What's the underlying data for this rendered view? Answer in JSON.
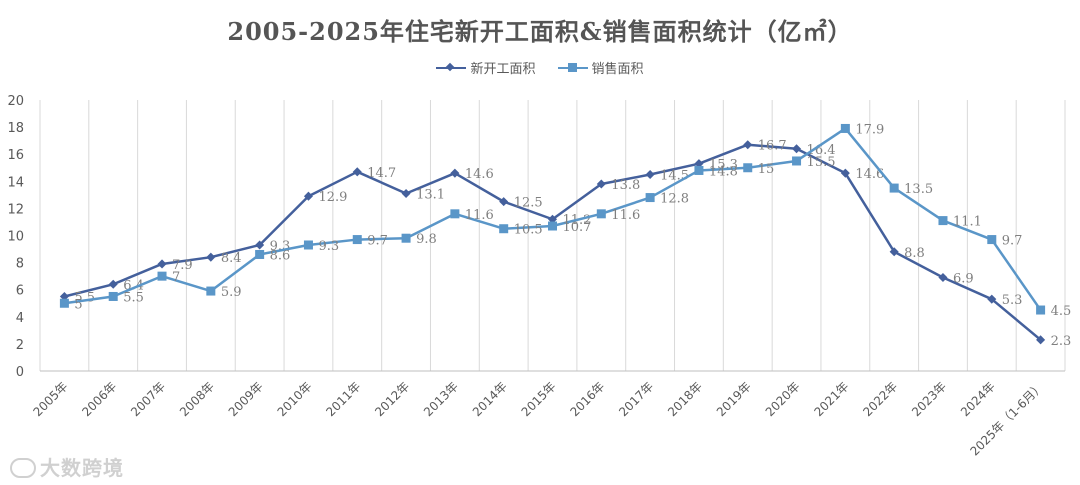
{
  "chart_data": {
    "type": "line",
    "title": "2005-2025年住宅新开工面积&销售面积统计（亿㎡）",
    "categories": [
      "2005年",
      "2006年",
      "2007年",
      "2008年",
      "2009年",
      "2010年",
      "2011年",
      "2012年",
      "2013年",
      "2014年",
      "2015年",
      "2016年",
      "2017年",
      "2018年",
      "2019年",
      "2020年",
      "2021年",
      "2022年",
      "2023年",
      "2024年",
      "2025年（1-6月）"
    ],
    "series": [
      {
        "name": "新开工面积",
        "color": "#44609c",
        "marker": "diamond",
        "values": [
          5.5,
          6.4,
          7.9,
          8.4,
          9.3,
          12.9,
          14.7,
          13.1,
          14.6,
          12.5,
          11.2,
          13.8,
          14.5,
          15.3,
          16.7,
          16.4,
          14.6,
          8.8,
          6.9,
          5.3,
          2.3
        ],
        "labels": [
          "5.5",
          "6.4",
          "7.9",
          "8.4",
          "9.3",
          "12.9",
          "14.7",
          "13.1",
          "14.6",
          "12.5",
          "11.2",
          "13.8",
          "14.5",
          "15.3",
          "16.7",
          "16.4",
          "14.6",
          "8.8",
          "6.9",
          "5.3",
          "2.3"
        ]
      },
      {
        "name": "销售面积",
        "color": "#5a96c8",
        "marker": "square",
        "values": [
          5.0,
          5.5,
          7.0,
          5.9,
          8.6,
          9.3,
          9.7,
          9.8,
          11.6,
          10.5,
          10.7,
          11.6,
          12.8,
          14.8,
          15.0,
          15.5,
          17.9,
          13.5,
          11.1,
          9.7,
          4.5
        ],
        "labels": [
          "5",
          "5.5",
          "7",
          "5.9",
          "8.6",
          "9.3",
          "9.7",
          "9.8",
          "11.6",
          "10.5",
          "10.7",
          "11.6",
          "12.8",
          "14.8",
          "15",
          "15.5",
          "17.9",
          "13.5",
          "11.1",
          "9.7",
          "4.5"
        ]
      }
    ],
    "ylim": [
      0,
      20
    ],
    "yticks": [
      "0",
      "2",
      "4",
      "6",
      "8",
      "10",
      "12",
      "14",
      "16",
      "18",
      "20"
    ],
    "grid": "vertical",
    "legend": "top-center"
  },
  "watermark": {
    "text": "大数跨境"
  }
}
